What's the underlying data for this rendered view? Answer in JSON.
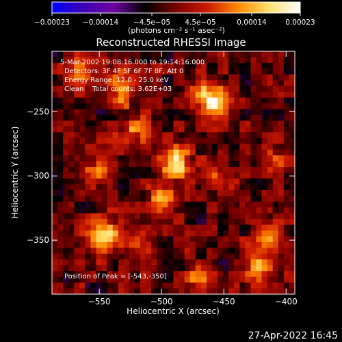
{
  "chart_data": {
    "type": "heatmap",
    "title": "Reconstructed RHESSI Image",
    "xlabel": "Heliocentric X (arcsec)",
    "ylabel": "Heliocentric Y (arcsec)",
    "xlim": [
      -588,
      -393
    ],
    "ylim": [
      -392,
      -203
    ],
    "x_ticks": [
      -550,
      -500,
      -450,
      -400
    ],
    "x_tick_labels": [
      "−550",
      "−500",
      "−450",
      "−400"
    ],
    "y_ticks": [
      -250,
      -300,
      -350
    ],
    "y_tick_labels": [
      "−250",
      "−300",
      "−350"
    ],
    "colorbar": {
      "min": -0.00023,
      "max": 0.00023,
      "ticks": [
        -0.00023,
        -0.00014,
        -4.5e-05,
        4.5e-05,
        0.00014,
        0.00023
      ],
      "tick_labels": [
        "−0.00023",
        "−0.00014",
        "−4.5e−05",
        "4.5e−05",
        "0.00014",
        "0.00023"
      ],
      "unit_label": "(photons cm⁻² s⁻¹ asec⁻²)",
      "colors": [
        "#0000ff",
        "#3c00b4",
        "#6e00a0",
        "#000000",
        "#7a0000",
        "#cc1a00",
        "#ff8a00",
        "#ffe070",
        "#ffffff"
      ]
    },
    "annotations": [
      "5-Mar-2002 19:08:16.000 to 19:14:16.000",
      "Detectors: 3F 4F 5F 6F 7F 8F, Att 0",
      "Energy Range: 12.0 - 25.0 keV",
      "Clean    Total counts: 3.62E+03"
    ],
    "peak_label": "Position of Peak = [-543,-350]",
    "peak": [
      -543,
      -350
    ],
    "hot_spots": [
      {
        "x": -458,
        "y": -240,
        "v": 0.00023
      },
      {
        "x": -488,
        "y": -289,
        "v": 0.00021
      },
      {
        "x": -547,
        "y": -348,
        "v": 0.00023
      },
      {
        "x": -498,
        "y": -320,
        "v": 0.00016
      },
      {
        "x": -412,
        "y": -348,
        "v": 0.00015
      },
      {
        "x": -421,
        "y": -372,
        "v": 0.00014
      },
      {
        "x": -533,
        "y": -233,
        "v": 0.00013
      },
      {
        "x": -569,
        "y": -220,
        "v": 0.00011
      },
      {
        "x": -521,
        "y": -265,
        "v": 0.0001
      },
      {
        "x": -455,
        "y": -300,
        "v": 9e-05
      },
      {
        "x": -548,
        "y": -293,
        "v": 9e-05
      },
      {
        "x": -515,
        "y": -357,
        "v": 9e-05
      },
      {
        "x": -468,
        "y": -380,
        "v": 0.0001
      },
      {
        "x": -405,
        "y": -285,
        "v": 7e-05
      }
    ]
  },
  "footer": {
    "timestamp": "27-Apr-2022 16:45"
  }
}
